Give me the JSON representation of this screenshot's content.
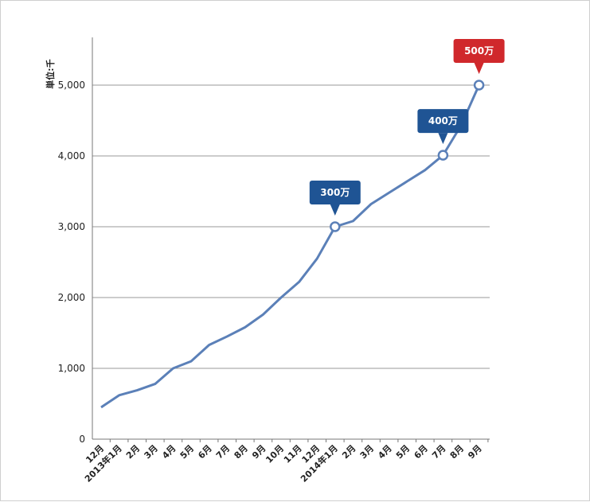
{
  "chart_data": {
    "type": "line",
    "ylabel": "単位:千",
    "ylim": [
      0,
      5000
    ],
    "yticks": [
      "0",
      "1,000",
      "2,000",
      "3,000",
      "4,000",
      "5,000"
    ],
    "ytick_values": [
      0,
      1000,
      2000,
      3000,
      4000,
      5000
    ],
    "grid": true,
    "categories": [
      "12月",
      "2013年1月",
      "2月",
      "3月",
      "4月",
      "5月",
      "6月",
      "7月",
      "8月",
      "9月",
      "10月",
      "11月",
      "12月",
      "2014年1月",
      "2月",
      "3月",
      "4月",
      "5月",
      "6月",
      "7月",
      "8月",
      "9月"
    ],
    "x": [
      0,
      1,
      2,
      3,
      4,
      5,
      6,
      7,
      8,
      9,
      10,
      11,
      12,
      13,
      14,
      15,
      16,
      17,
      18,
      19,
      20,
      21
    ],
    "series": [
      {
        "values": [
          450,
          620,
          690,
          780,
          1000,
          1100,
          1330,
          1450,
          1580,
          1760,
          2000,
          2220,
          2550,
          3000,
          3080,
          3320,
          3480,
          3640,
          3800,
          4010,
          4430,
          5000
        ],
        "color": "#5b80b8"
      }
    ],
    "annotations": [
      {
        "index": 13,
        "label": "300万",
        "color": "#1f5494"
      },
      {
        "index": 19,
        "label": "400万",
        "color": "#1f5494"
      },
      {
        "index": 21,
        "label": "500万",
        "color": "#d0282c"
      }
    ]
  }
}
